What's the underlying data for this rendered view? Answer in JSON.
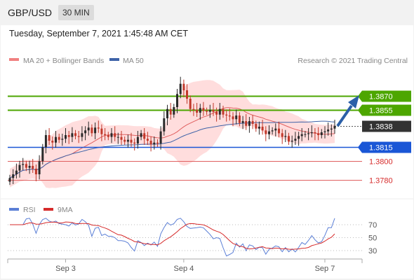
{
  "header": {
    "pair": "GBP/USD",
    "timeframe": "30 MIN"
  },
  "timestamp": "Tuesday, September 7, 2021 1:45:48 AM CET",
  "legend": {
    "ma20": "MA 20 + Bollinger Bands",
    "ma50": "MA 50",
    "credit": "Research © 2021 Trading Central"
  },
  "rsi_legend": {
    "rsi": "RSI",
    "ma": "9MA"
  },
  "colors": {
    "up": "#2a2a2a",
    "down": "#c0392b",
    "green": "#4da600",
    "blue": "#1a56d6",
    "red": "#e06060",
    "bb": "#ffd2d2",
    "ma50": "#3e63a8",
    "rsi": "#5b7fd6"
  },
  "chart_data": [
    {
      "type": "line",
      "title": "GBP/USD",
      "timeframe": "30 MIN",
      "x_ticks": [
        "Sep 3",
        "Sep 4",
        "Sep 7"
      ],
      "ylim": [
        1.376,
        1.389
      ],
      "series": [
        {
          "name": "MA 20 + Bollinger Bands",
          "color": "#e06060"
        },
        {
          "name": "MA 50",
          "color": "#3e63a8"
        }
      ],
      "price_levels": [
        {
          "label": "1.3870",
          "value": 1.387,
          "kind": "resistance",
          "color": "#4da600"
        },
        {
          "label": "1.3855",
          "value": 1.3855,
          "kind": "resistance",
          "color": "#4da600"
        },
        {
          "label": "1.3838",
          "value": 1.3838,
          "kind": "current",
          "color": "#333333"
        },
        {
          "label": "1.3815",
          "value": 1.3815,
          "kind": "pivot",
          "color": "#1a56d6"
        },
        {
          "label": "1.3800",
          "value": 1.38,
          "kind": "support",
          "color": "#e06060"
        },
        {
          "label": "1.3780",
          "value": 1.378,
          "kind": "support",
          "color": "#e06060"
        }
      ],
      "close": [
        1.3782,
        1.3786,
        1.379,
        1.3796,
        1.3797,
        1.3793,
        1.3795,
        1.3792,
        1.3786,
        1.38,
        1.3815,
        1.3828,
        1.3822,
        1.382,
        1.3826,
        1.3823,
        1.3824,
        1.3828,
        1.3826,
        1.383,
        1.3827,
        1.3826,
        1.383,
        1.3833,
        1.3836,
        1.383,
        1.3836,
        1.3835,
        1.3829,
        1.3828,
        1.3826,
        1.383,
        1.3826,
        1.3826,
        1.3823,
        1.3821,
        1.3823,
        1.382,
        1.3819,
        1.3826,
        1.383,
        1.3824,
        1.3822,
        1.3818,
        1.382,
        1.3819,
        1.3832,
        1.3846,
        1.3856,
        1.385,
        1.3858,
        1.3872,
        1.3883,
        1.3876,
        1.3867,
        1.3856,
        1.3855,
        1.3852,
        1.3857,
        1.3854,
        1.3853,
        1.3855,
        1.3853,
        1.385,
        1.3856,
        1.385,
        1.3849,
        1.3848,
        1.3845,
        1.3849,
        1.3841,
        1.3843,
        1.3838,
        1.3843,
        1.384,
        1.3835,
        1.3837,
        1.3833,
        1.3829,
        1.3832,
        1.3833,
        1.3835,
        1.383,
        1.3826,
        1.3827,
        1.3821,
        1.3822,
        1.3824,
        1.3827,
        1.3829,
        1.3829,
        1.383,
        1.3831,
        1.383,
        1.3828,
        1.3831,
        1.3832,
        1.3834,
        1.3835,
        1.3838
      ]
    },
    {
      "type": "line",
      "title": "RSI",
      "ylim": [
        20,
        80
      ],
      "y_ticks": [
        70,
        50,
        30
      ],
      "series": [
        {
          "name": "RSI",
          "color": "#5b7fd6"
        },
        {
          "name": "9MA",
          "color": "#d62b2b"
        }
      ]
    }
  ]
}
